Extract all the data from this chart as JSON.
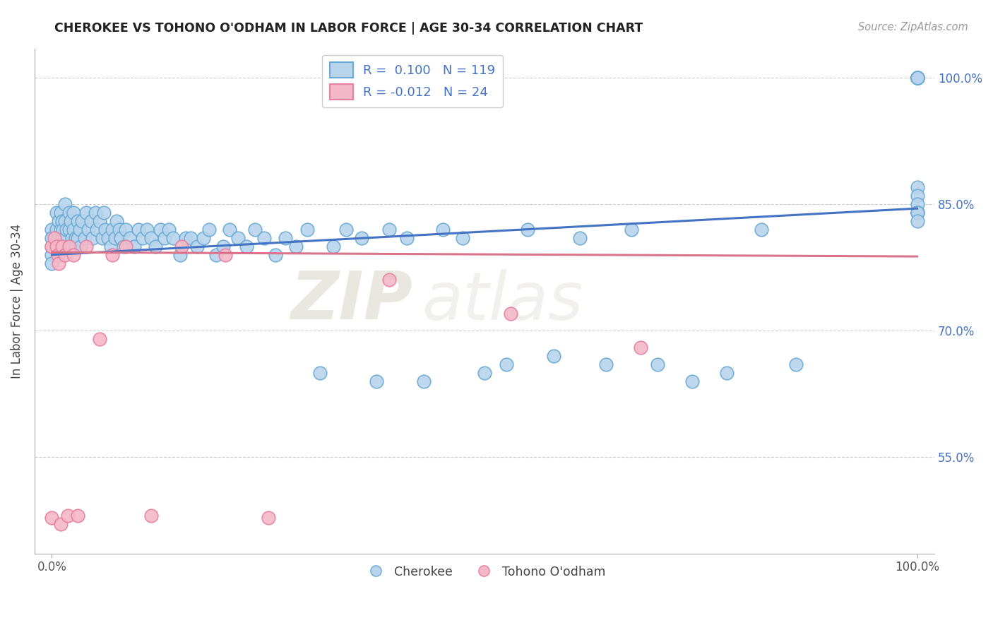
{
  "title": "CHEROKEE VS TOHONO O'ODHAM IN LABOR FORCE | AGE 30-34 CORRELATION CHART",
  "source": "Source: ZipAtlas.com",
  "ylabel": "In Labor Force | Age 30-34",
  "xlim": [
    -0.02,
    1.02
  ],
  "ylim": [
    0.435,
    1.035
  ],
  "ytick_vals": [
    0.55,
    0.7,
    0.85,
    1.0
  ],
  "ytick_labels": [
    "55.0%",
    "70.0%",
    "85.0%",
    "100.0%"
  ],
  "xtick_vals": [
    0.0,
    1.0
  ],
  "xtick_labels": [
    "0.0%",
    "100.0%"
  ],
  "cherokee_color": "#b8d4ed",
  "cherokee_edge": "#6aaad4",
  "tohono_color": "#f4b8c8",
  "tohono_edge": "#e87f9f",
  "trend_cherokee": "#4472c4",
  "trend_tohono": "#d9748a",
  "cherokee_R": 0.1,
  "cherokee_N": 119,
  "tohono_R": -0.012,
  "tohono_N": 24,
  "watermark_zip": "ZIP",
  "watermark_atlas": "atlas",
  "legend_label_cherokee": "Cherokee",
  "legend_label_tohono": "Tohono O'odham",
  "cherokee_x": [
    0.0,
    0.0,
    0.0,
    0.0,
    0.0,
    0.005,
    0.005,
    0.007,
    0.008,
    0.008,
    0.01,
    0.01,
    0.01,
    0.012,
    0.012,
    0.013,
    0.013,
    0.015,
    0.015,
    0.015,
    0.017,
    0.018,
    0.02,
    0.02,
    0.022,
    0.023,
    0.025,
    0.025,
    0.027,
    0.028,
    0.03,
    0.03,
    0.032,
    0.033,
    0.035,
    0.038,
    0.04,
    0.042,
    0.045,
    0.047,
    0.05,
    0.052,
    0.055,
    0.058,
    0.06,
    0.062,
    0.065,
    0.068,
    0.07,
    0.073,
    0.075,
    0.078,
    0.08,
    0.083,
    0.085,
    0.09,
    0.095,
    0.1,
    0.105,
    0.11,
    0.115,
    0.12,
    0.125,
    0.13,
    0.135,
    0.14,
    0.148,
    0.155,
    0.16,
    0.168,
    0.175,
    0.182,
    0.19,
    0.198,
    0.205,
    0.215,
    0.225,
    0.235,
    0.245,
    0.258,
    0.27,
    0.282,
    0.295,
    0.31,
    0.325,
    0.34,
    0.358,
    0.375,
    0.39,
    0.41,
    0.43,
    0.452,
    0.475,
    0.5,
    0.525,
    0.55,
    0.58,
    0.61,
    0.64,
    0.67,
    0.7,
    0.74,
    0.78,
    0.82,
    0.86,
    1.0,
    1.0,
    1.0,
    1.0,
    1.0,
    1.0,
    1.0,
    1.0,
    1.0,
    1.0,
    1.0,
    1.0,
    1.0,
    1.0
  ],
  "cherokee_y": [
    0.82,
    0.81,
    0.8,
    0.79,
    0.78,
    0.84,
    0.82,
    0.81,
    0.83,
    0.8,
    0.84,
    0.82,
    0.8,
    0.83,
    0.81,
    0.82,
    0.8,
    0.85,
    0.83,
    0.81,
    0.82,
    0.8,
    0.84,
    0.82,
    0.83,
    0.81,
    0.84,
    0.82,
    0.81,
    0.8,
    0.83,
    0.81,
    0.82,
    0.8,
    0.83,
    0.81,
    0.84,
    0.82,
    0.83,
    0.81,
    0.84,
    0.82,
    0.83,
    0.81,
    0.84,
    0.82,
    0.81,
    0.8,
    0.82,
    0.81,
    0.83,
    0.82,
    0.81,
    0.8,
    0.82,
    0.81,
    0.8,
    0.82,
    0.81,
    0.82,
    0.81,
    0.8,
    0.82,
    0.81,
    0.82,
    0.81,
    0.79,
    0.81,
    0.81,
    0.8,
    0.81,
    0.82,
    0.79,
    0.8,
    0.82,
    0.81,
    0.8,
    0.82,
    0.81,
    0.79,
    0.81,
    0.8,
    0.82,
    0.65,
    0.8,
    0.82,
    0.81,
    0.64,
    0.82,
    0.81,
    0.64,
    0.82,
    0.81,
    0.65,
    0.66,
    0.82,
    0.67,
    0.81,
    0.66,
    0.82,
    0.66,
    0.64,
    0.65,
    0.82,
    0.66,
    1.0,
    1.0,
    1.0,
    1.0,
    1.0,
    1.0,
    1.0,
    0.87,
    0.86,
    0.85,
    0.84,
    0.84,
    0.84,
    0.83
  ],
  "tohono_x": [
    0.0,
    0.0,
    0.003,
    0.005,
    0.007,
    0.008,
    0.01,
    0.012,
    0.015,
    0.018,
    0.02,
    0.025,
    0.03,
    0.04,
    0.055,
    0.07,
    0.085,
    0.115,
    0.15,
    0.2,
    0.25,
    0.39,
    0.53,
    0.68
  ],
  "tohono_y": [
    0.8,
    0.478,
    0.81,
    0.8,
    0.79,
    0.78,
    0.47,
    0.8,
    0.79,
    0.48,
    0.8,
    0.79,
    0.48,
    0.8,
    0.69,
    0.79,
    0.8,
    0.48,
    0.8,
    0.79,
    0.478,
    0.76,
    0.72,
    0.68
  ],
  "blue_line_x0": 0.0,
  "blue_line_y0": 0.79,
  "blue_line_x1": 1.0,
  "blue_line_y1": 0.845,
  "pink_line_x0": 0.0,
  "pink_line_y0": 0.793,
  "pink_line_x1": 1.0,
  "pink_line_y1": 0.788
}
